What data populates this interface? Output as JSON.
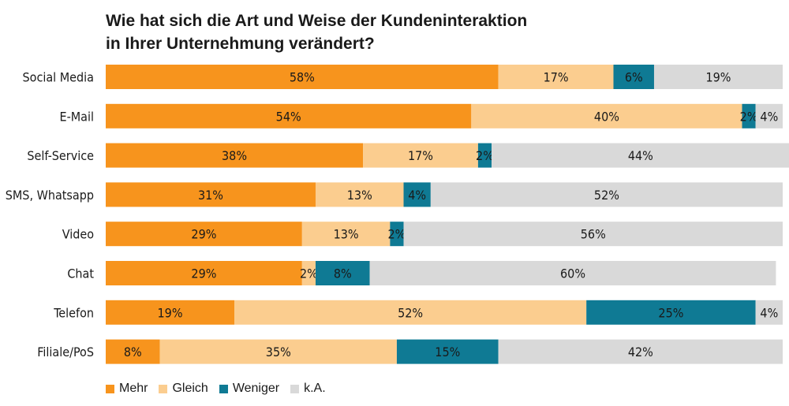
{
  "title_line1": "Wie hat sich die Art und Weise der Kundeninteraktion",
  "title_line2": "in Ihrer Unternehmung verändert?",
  "chart_data": {
    "type": "bar",
    "orientation": "horizontal",
    "stacked": true,
    "title": "Wie hat sich die Art und Weise der Kundeninteraktion in Ihrer Unternehmung verändert?",
    "categories": [
      "Social Media",
      "E-Mail",
      "Self-Service",
      "SMS, Whatsapp",
      "Video",
      "Chat",
      "Telefon",
      "Filiale/PoS"
    ],
    "series": [
      {
        "name": "Mehr",
        "color": "#f7941d",
        "values": [
          58,
          54,
          38,
          31,
          29,
          29,
          19,
          8
        ]
      },
      {
        "name": "Gleich",
        "color": "#fbcd8f",
        "values": [
          17,
          40,
          17,
          13,
          13,
          2,
          52,
          35
        ]
      },
      {
        "name": "Weniger",
        "color": "#0f7a94",
        "values": [
          6,
          2,
          2,
          4,
          2,
          8,
          25,
          15
        ]
      },
      {
        "name": "k.A.",
        "color": "#d9d9d9",
        "values": [
          19,
          4,
          44,
          52,
          56,
          60,
          4,
          42
        ]
      }
    ],
    "value_suffix": "%",
    "xlim": [
      0,
      100
    ],
    "grid": false,
    "legend_position": "bottom-left"
  }
}
